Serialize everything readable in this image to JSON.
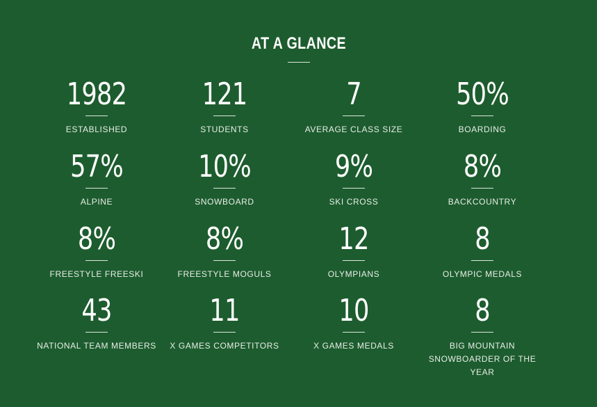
{
  "header": {
    "title": "AT A GLANCE"
  },
  "stats": [
    {
      "value": "1982",
      "label": "ESTABLISHED"
    },
    {
      "value": "121",
      "label": "STUDENTS"
    },
    {
      "value": "7",
      "label": "AVERAGE CLASS SIZE"
    },
    {
      "value": "50%",
      "label": "BOARDING"
    },
    {
      "value": "57%",
      "label": "ALPINE"
    },
    {
      "value": "10%",
      "label": "SNOWBOARD"
    },
    {
      "value": "9%",
      "label": "SKI CROSS"
    },
    {
      "value": "8%",
      "label": "BACKCOUNTRY"
    },
    {
      "value": "8%",
      "label": "FREESTYLE FREESKI"
    },
    {
      "value": "8%",
      "label": "FREESTYLE MOGULS"
    },
    {
      "value": "12",
      "label": "OLYMPIANS"
    },
    {
      "value": "8",
      "label": "OLYMPIC MEDALS"
    },
    {
      "value": "43",
      "label": "NATIONAL TEAM MEMBERS"
    },
    {
      "value": "11",
      "label": "X GAMES COMPETITORS"
    },
    {
      "value": "10",
      "label": "X GAMES MEDALS"
    },
    {
      "value": "8",
      "label": "BIG MOUNTAIN SNOWBOARDER OF THE YEAR"
    }
  ],
  "colors": {
    "background": "#1d5c2e",
    "text": "#ffffff"
  }
}
